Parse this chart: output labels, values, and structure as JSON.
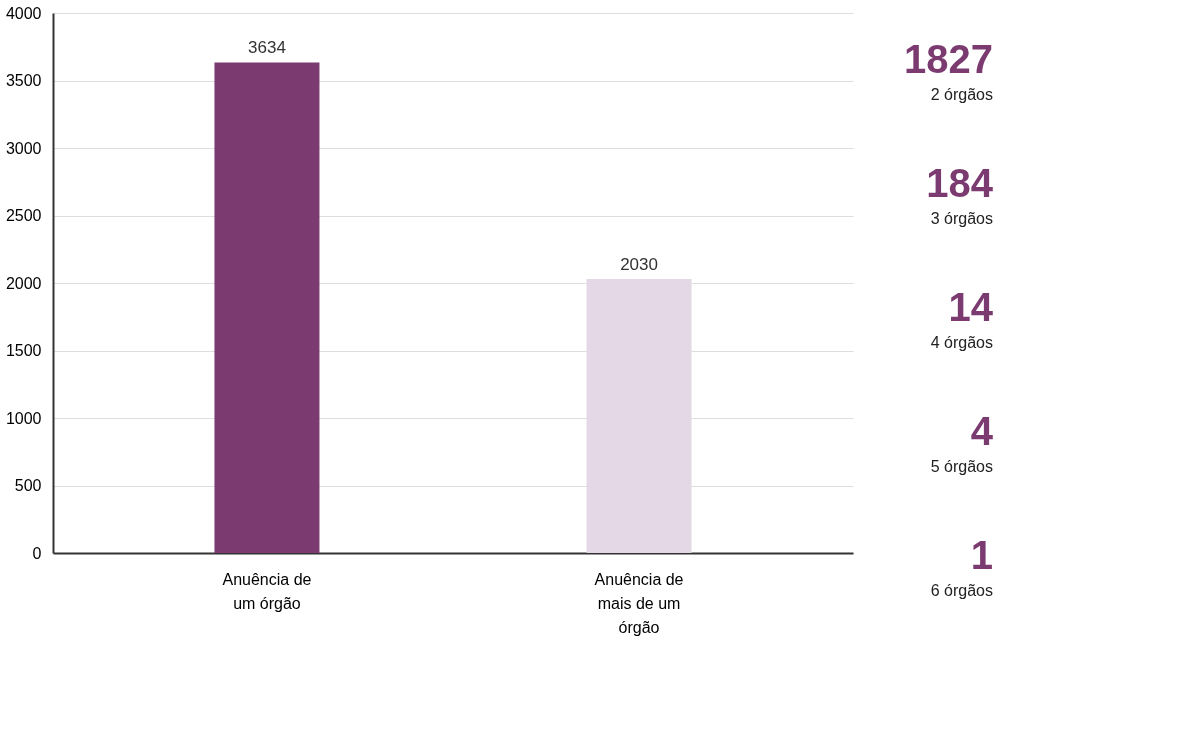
{
  "chart_data": {
    "type": "bar",
    "categories": [
      "Anuência de um órgão",
      "Anuência de mais de um órgão"
    ],
    "values": [
      3634,
      2030
    ],
    "colors": [
      "#7b3b70",
      "#e4d8e6"
    ],
    "ylim": [
      0,
      4000
    ],
    "yticks": [
      0,
      500,
      1000,
      1500,
      2000,
      2500,
      3000,
      3500,
      4000
    ],
    "grid": "y",
    "data_labels": true,
    "annotations": [
      "1827",
      "2 órgãos",
      "184",
      "3 órgãos",
      "14",
      "4 órgãos",
      "4",
      "5 órgãos",
      "1",
      "6 órgãos"
    ]
  }
}
